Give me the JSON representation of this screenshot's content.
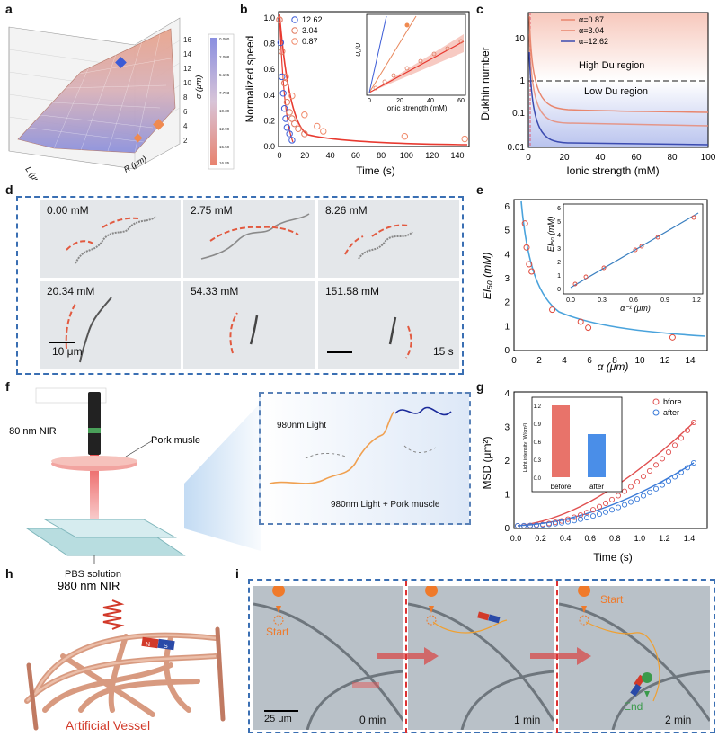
{
  "panels": {
    "a": {
      "label": "a",
      "zlabel": "σ (μm)",
      "ylabel": "L (μm)",
      "xlabel": "R (μm)",
      "zticks": [
        "16",
        "14",
        "12",
        "10",
        "8",
        "6",
        "4",
        "2"
      ],
      "colorbar": [
        "0.000",
        "2.008",
        "5.195",
        "7.793",
        "10.39",
        "12.99",
        "15.59",
        "16.85"
      ]
    },
    "b": {
      "label": "b",
      "ylabel": "Normalized speed",
      "xlabel": "Time (s)",
      "xticks": [
        "0",
        "20",
        "40",
        "60",
        "80",
        "100",
        "120",
        "140"
      ],
      "yticks": [
        "0.0",
        "0.2",
        "0.4",
        "0.6",
        "0.8",
        "1.0"
      ],
      "legend": [
        "12.62",
        "3.04",
        "0.87"
      ],
      "inset": {
        "ylabel": "U₀/U",
        "xlabel": "Ionic strength (mM)",
        "xticks": [
          "0",
          "20",
          "40",
          "60"
        ]
      }
    },
    "c": {
      "label": "c",
      "ylabel": "Dukhin number",
      "xlabel": "Ionic strength (mM)",
      "xticks": [
        "0",
        "20",
        "40",
        "60",
        "80",
        "100"
      ],
      "yticks": [
        "10",
        "1",
        "0.1",
        "0.01"
      ],
      "legend": [
        "α=0.87",
        "α=3.04",
        "α=12.62"
      ],
      "high": "High Du region",
      "low": "Low Du region"
    },
    "d": {
      "label": "d",
      "tiles": [
        "0.00 mM",
        "2.75 mM",
        "8.26 mM",
        "20.34 mM",
        "54.33 mM",
        "151.58 mM"
      ],
      "scalebar": "10 μm",
      "time": "15 s"
    },
    "e": {
      "label": "e",
      "ylabel": "EI₅₀ (mM)",
      "xlabel": "α (μm)",
      "xticks": [
        "0",
        "2",
        "4",
        "6",
        "8",
        "10",
        "12",
        "14"
      ],
      "yticks": [
        "0",
        "1",
        "2",
        "3",
        "4",
        "5",
        "6"
      ],
      "inset": {
        "ylabel": "EI₅₀ (mM)",
        "xlabel": "α⁻¹ (μm)",
        "xticks": [
          "0.0",
          "0.3",
          "0.6",
          "0.9",
          "1.2"
        ],
        "yticks": [
          "0",
          "1",
          "2",
          "3",
          "4",
          "5",
          "6"
        ]
      }
    },
    "f": {
      "label": "f",
      "nir": "980 nm NIR",
      "tissue": "Pork musle",
      "pbs": "PBS solution",
      "light": "980nm Light",
      "light_pork": "980nm Light + Pork muscle"
    },
    "g": {
      "label": "g",
      "ylabel": "MSD (μm²)",
      "xlabel": "Time (s)",
      "xticks": [
        "0.0",
        "0.2",
        "0.4",
        "0.6",
        "0.8",
        "1.0",
        "1.2",
        "1.4"
      ],
      "yticks": [
        "0",
        "1",
        "2",
        "3",
        "4"
      ],
      "legend": [
        "bfore",
        "after"
      ],
      "inset": {
        "ylabel": "Light intensity (W/cm²)",
        "bars": [
          "before",
          "after"
        ],
        "yticks": [
          "0.0",
          "0.3",
          "0.6",
          "0.9",
          "1.2"
        ]
      }
    },
    "h": {
      "label": "h",
      "nir": "980 nm NIR",
      "vessel": "Artificial Vessel",
      "n": "N",
      "s": "S"
    },
    "i": {
      "label": "i",
      "start": "Start",
      "end": "End",
      "times": [
        "0 min",
        "1 min",
        "2 min"
      ],
      "scalebar": "25 μm"
    }
  },
  "chart_data": [
    {
      "type": "scatter",
      "panel": "b",
      "series": [
        {
          "name": "12.62",
          "color": "#3b5bd6",
          "x": [
            0,
            1,
            2,
            3,
            4,
            5,
            6,
            8,
            10
          ],
          "y": [
            1.0,
            0.82,
            0.55,
            0.42,
            0.3,
            0.22,
            0.15,
            0.1,
            0.05
          ]
        },
        {
          "name": "3.04",
          "color": "#e07a5f",
          "x": [
            0,
            2,
            4,
            6,
            8,
            10,
            12,
            15,
            20
          ],
          "y": [
            1.0,
            0.75,
            0.5,
            0.35,
            0.27,
            0.22,
            0.18,
            0.14,
            0.1
          ]
        },
        {
          "name": "0.87",
          "color": "#f08a6b",
          "x": [
            0,
            5,
            10,
            20,
            30,
            35,
            100,
            148
          ],
          "y": [
            1.0,
            0.55,
            0.4,
            0.25,
            0.16,
            0.12,
            0.08,
            0.06
          ]
        }
      ],
      "xlim": [
        0,
        150
      ],
      "ylim": [
        0,
        1.05
      ]
    },
    {
      "type": "line",
      "panel": "c",
      "series": [
        {
          "name": "α=0.87",
          "color": "#e8866e",
          "end": 0.2
        },
        {
          "name": "α=3.04",
          "color": "#e8866e",
          "end": 0.05
        },
        {
          "name": "α=12.62",
          "color": "#3b4bb0",
          "end": 0.012
        }
      ],
      "xlim": [
        0,
        100
      ],
      "ylim": [
        0.01,
        50
      ],
      "yscale": "log"
    },
    {
      "type": "scatter",
      "panel": "e",
      "x": [
        0.87,
        1.0,
        1.2,
        1.4,
        3.04,
        5.3,
        5.9,
        12.6
      ],
      "y": [
        5.3,
        4.3,
        3.6,
        3.3,
        1.7,
        1.2,
        0.95,
        0.55
      ],
      "xlim": [
        0,
        15
      ],
      "ylim": [
        0,
        6
      ]
    },
    {
      "type": "bar",
      "panel": "g-inset",
      "categories": [
        "before",
        "after"
      ],
      "values": [
        1.2,
        0.72
      ],
      "colors": [
        "#e8736a",
        "#4a8ee8"
      ]
    }
  ]
}
